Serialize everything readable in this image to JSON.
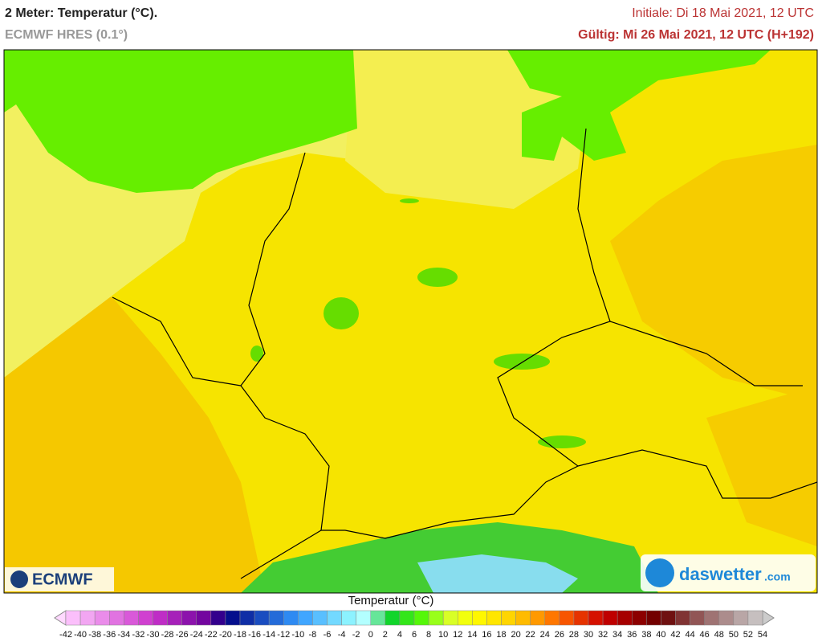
{
  "header": {
    "title": "2 Meter: Temperatur (°C).",
    "subtitle": "ECMWF HRES (0.1°)",
    "initial": "Initiale: Di 18 Mai 2021, 12 UTC",
    "valid": "Gültig: Mi 26 Mai 2021, 12 UTC (H+192)"
  },
  "logos": {
    "ecmwf": "ECMWF",
    "daswetter": "daswetter",
    "domain": ".com"
  },
  "legend": {
    "title": "Temperatur (°C)",
    "ticks": [
      -42,
      -40,
      -38,
      -36,
      -34,
      -32,
      -30,
      -28,
      -26,
      -24,
      -22,
      -20,
      -18,
      -16,
      -14,
      -12,
      -10,
      -8,
      -6,
      -4,
      -2,
      0,
      2,
      4,
      6,
      8,
      10,
      12,
      14,
      16,
      18,
      20,
      22,
      24,
      26,
      28,
      30,
      32,
      34,
      36,
      38,
      40,
      42,
      44,
      46,
      48,
      50,
      52,
      54
    ]
  }
}
